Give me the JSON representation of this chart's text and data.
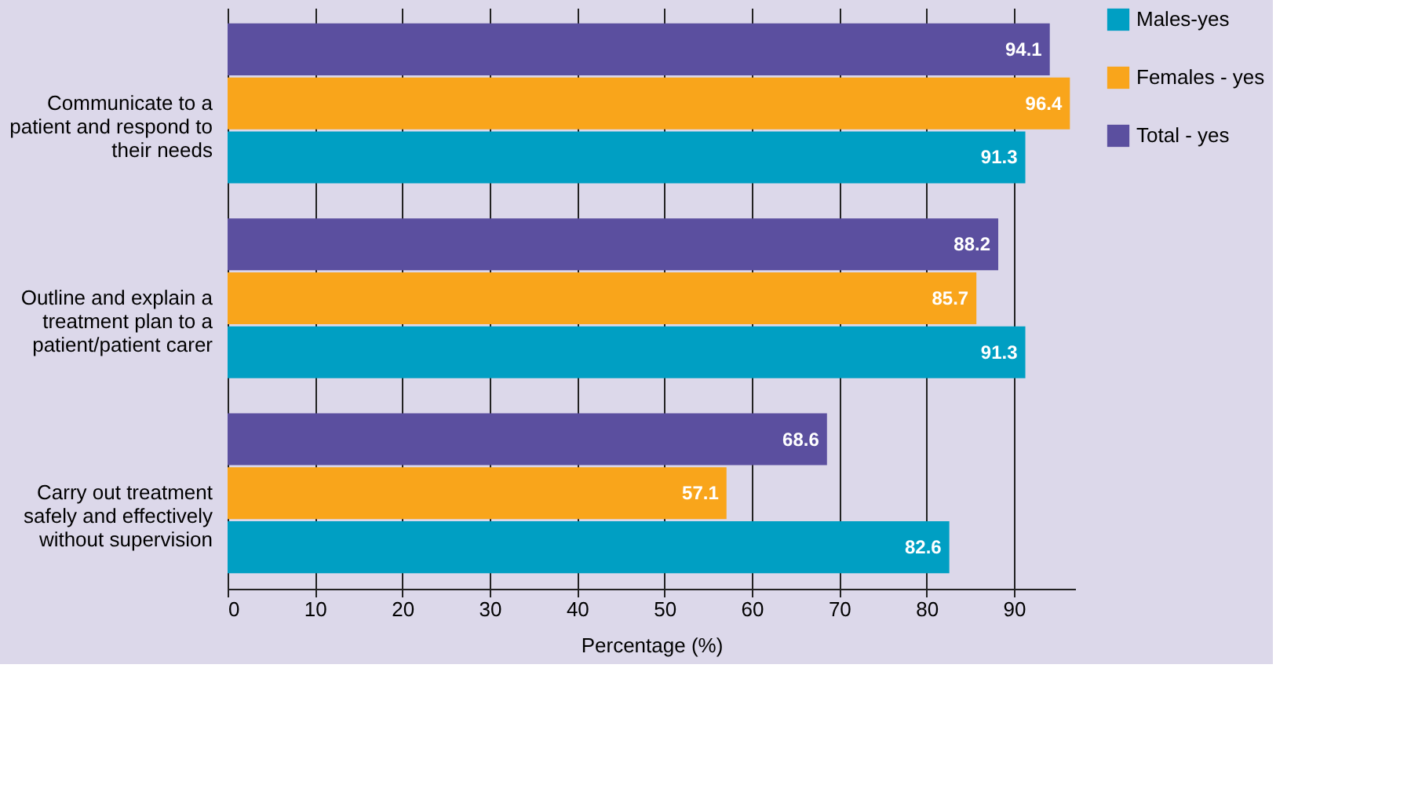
{
  "chart_data": {
    "type": "bar",
    "orientation": "horizontal",
    "xlabel": "Percentage (%)",
    "categories": [
      "Communicate to a patient and respond to their needs",
      "Outline and explain a treatment plan to a patient/patient carer",
      "Carry out treatment safely and effectively without supervision"
    ],
    "series": [
      {
        "name": "Males-yes",
        "color": "#009fc3",
        "values": [
          91.3,
          91.3,
          82.6
        ]
      },
      {
        "name": "Females - yes",
        "color": "#f9a51b",
        "values": [
          96.4,
          85.7,
          57.1
        ]
      },
      {
        "name": "Total - yes",
        "color": "#5b4f9f",
        "values": [
          94.1,
          88.2,
          68.6
        ]
      }
    ],
    "xlim": [
      0,
      97
    ],
    "xticks": [
      0,
      10,
      20,
      30,
      40,
      50,
      60,
      70,
      80,
      90
    ],
    "grid": "x",
    "legend": "right",
    "data_labels": true
  }
}
